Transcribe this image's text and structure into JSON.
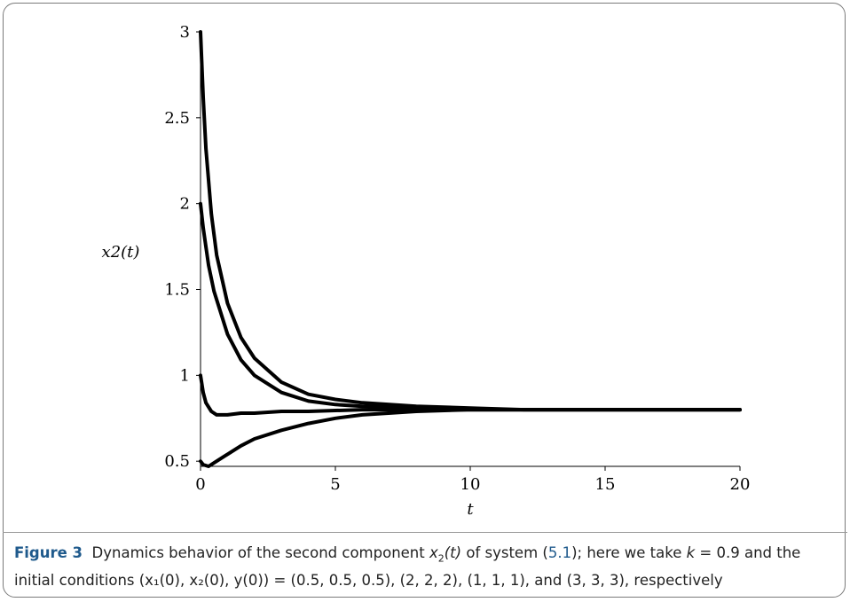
{
  "chart_data": {
    "type": "line",
    "xlabel": "t",
    "ylabel": "x2(t)",
    "xlim": [
      0,
      20
    ],
    "ylim": [
      0.47,
      3.0
    ],
    "xticks": [
      "0",
      "5",
      "10",
      "15",
      "20"
    ],
    "yticks": [
      "0.5",
      "1",
      "1.5",
      "2",
      "2.5",
      "3"
    ],
    "grid": false,
    "series": [
      {
        "x": [
          0,
          0.1,
          0.3,
          0.5,
          1,
          1.5,
          2,
          3,
          4,
          5,
          6,
          8,
          10,
          12,
          15,
          20
        ],
        "values": [
          0.5,
          0.48,
          0.47,
          0.49,
          0.54,
          0.59,
          0.63,
          0.68,
          0.72,
          0.75,
          0.77,
          0.79,
          0.8,
          0.8,
          0.8,
          0.8
        ]
      },
      {
        "x": [
          0,
          0.1,
          0.3,
          0.5,
          1,
          1.5,
          2,
          3,
          4,
          5,
          6,
          8,
          10,
          12,
          15,
          20
        ],
        "values": [
          2.0,
          1.86,
          1.64,
          1.49,
          1.24,
          1.09,
          1.0,
          0.9,
          0.85,
          0.83,
          0.82,
          0.81,
          0.8,
          0.8,
          0.8,
          0.8
        ]
      },
      {
        "x": [
          0,
          0.1,
          0.2,
          0.4,
          0.6,
          0.8,
          1,
          1.5,
          2,
          3,
          4,
          6,
          8,
          10,
          15,
          20
        ],
        "values": [
          1.0,
          0.9,
          0.84,
          0.79,
          0.77,
          0.77,
          0.77,
          0.78,
          0.78,
          0.79,
          0.79,
          0.8,
          0.8,
          0.8,
          0.8,
          0.8
        ]
      },
      {
        "x": [
          0,
          0.1,
          0.2,
          0.4,
          0.6,
          1,
          1.5,
          2,
          3,
          4,
          5,
          6,
          8,
          10,
          12,
          15,
          20
        ],
        "values": [
          3.0,
          2.62,
          2.32,
          1.94,
          1.7,
          1.42,
          1.22,
          1.1,
          0.96,
          0.89,
          0.86,
          0.84,
          0.82,
          0.81,
          0.8,
          0.8,
          0.8
        ]
      }
    ]
  },
  "caption": {
    "figure_label": "Figure 3",
    "line1_a": "Dynamics behavior of the second component ",
    "var_x2": "x",
    "sub_2": "2",
    "var_t": "(t)",
    "line1_b": " of system (",
    "eq_ref": "5.1",
    "line1_c": "); here we take ",
    "var_k": "k",
    "line1_d": " = 0.9 and the",
    "line2": "initial conditions (x₁(0), x₂(0), y(0)) = (0.5, 0.5, 0.5), (2, 2, 2), (1, 1, 1), and (3, 3, 3), respectively"
  },
  "colors": {
    "line": "#000000",
    "figure_label": "#1f5a8c",
    "border": "#7a7a7a"
  }
}
